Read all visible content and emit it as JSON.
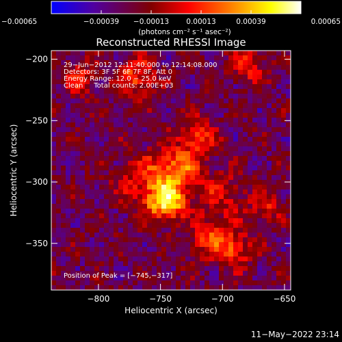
{
  "chart_data": {
    "type": "heatmap",
    "title": "Reconstructed RHESSI Image",
    "xlabel": "Heliocentric X (arcsec)",
    "ylabel": "Heliocentric Y (arcsec)",
    "xlim": [
      -838,
      -645
    ],
    "ylim": [
      -388,
      -193
    ],
    "xticks": [
      -800,
      -750,
      -700,
      -650
    ],
    "yticks": [
      -200,
      -250,
      -300,
      -350
    ],
    "xtick_labels": [
      "−800",
      "−750",
      "−700",
      "−650"
    ],
    "ytick_labels": [
      "−200",
      "−250",
      "−300",
      "−350"
    ],
    "colorbar": {
      "ticks": [
        -0.00065,
        -0.00039,
        -0.00013,
        0.00013,
        0.00039,
        0.00065
      ],
      "tick_labels": [
        "−0.00065",
        "−0.00039",
        "−0.00013",
        "0.00013",
        "0.00039",
        "0.00065"
      ],
      "range": [
        -0.00065,
        0.00065
      ],
      "units_label": "(photons cm⁻² s⁻¹ asec⁻²)",
      "colors": [
        "#0000ff",
        "#5000a0",
        "#800000",
        "#ff0000",
        "#ff8000",
        "#ffff00",
        "#ffffff"
      ]
    },
    "info_lines": [
      "29−Jun−2012 12:11:40.000 to 12:14:08.000",
      "Detectors: 3F 5F 6F 7F 8F, Att 0",
      "Energy Range: 12.0 − 25.0 keV",
      "Clean     Total counts: 2.00E+03"
    ],
    "peak_label": "Position of Peak = [−745,−317]",
    "peak": [
      -745,
      -317
    ],
    "grid": false,
    "legend": "none"
  },
  "footer": {
    "timestamp": "11−May−2022 23:14"
  }
}
